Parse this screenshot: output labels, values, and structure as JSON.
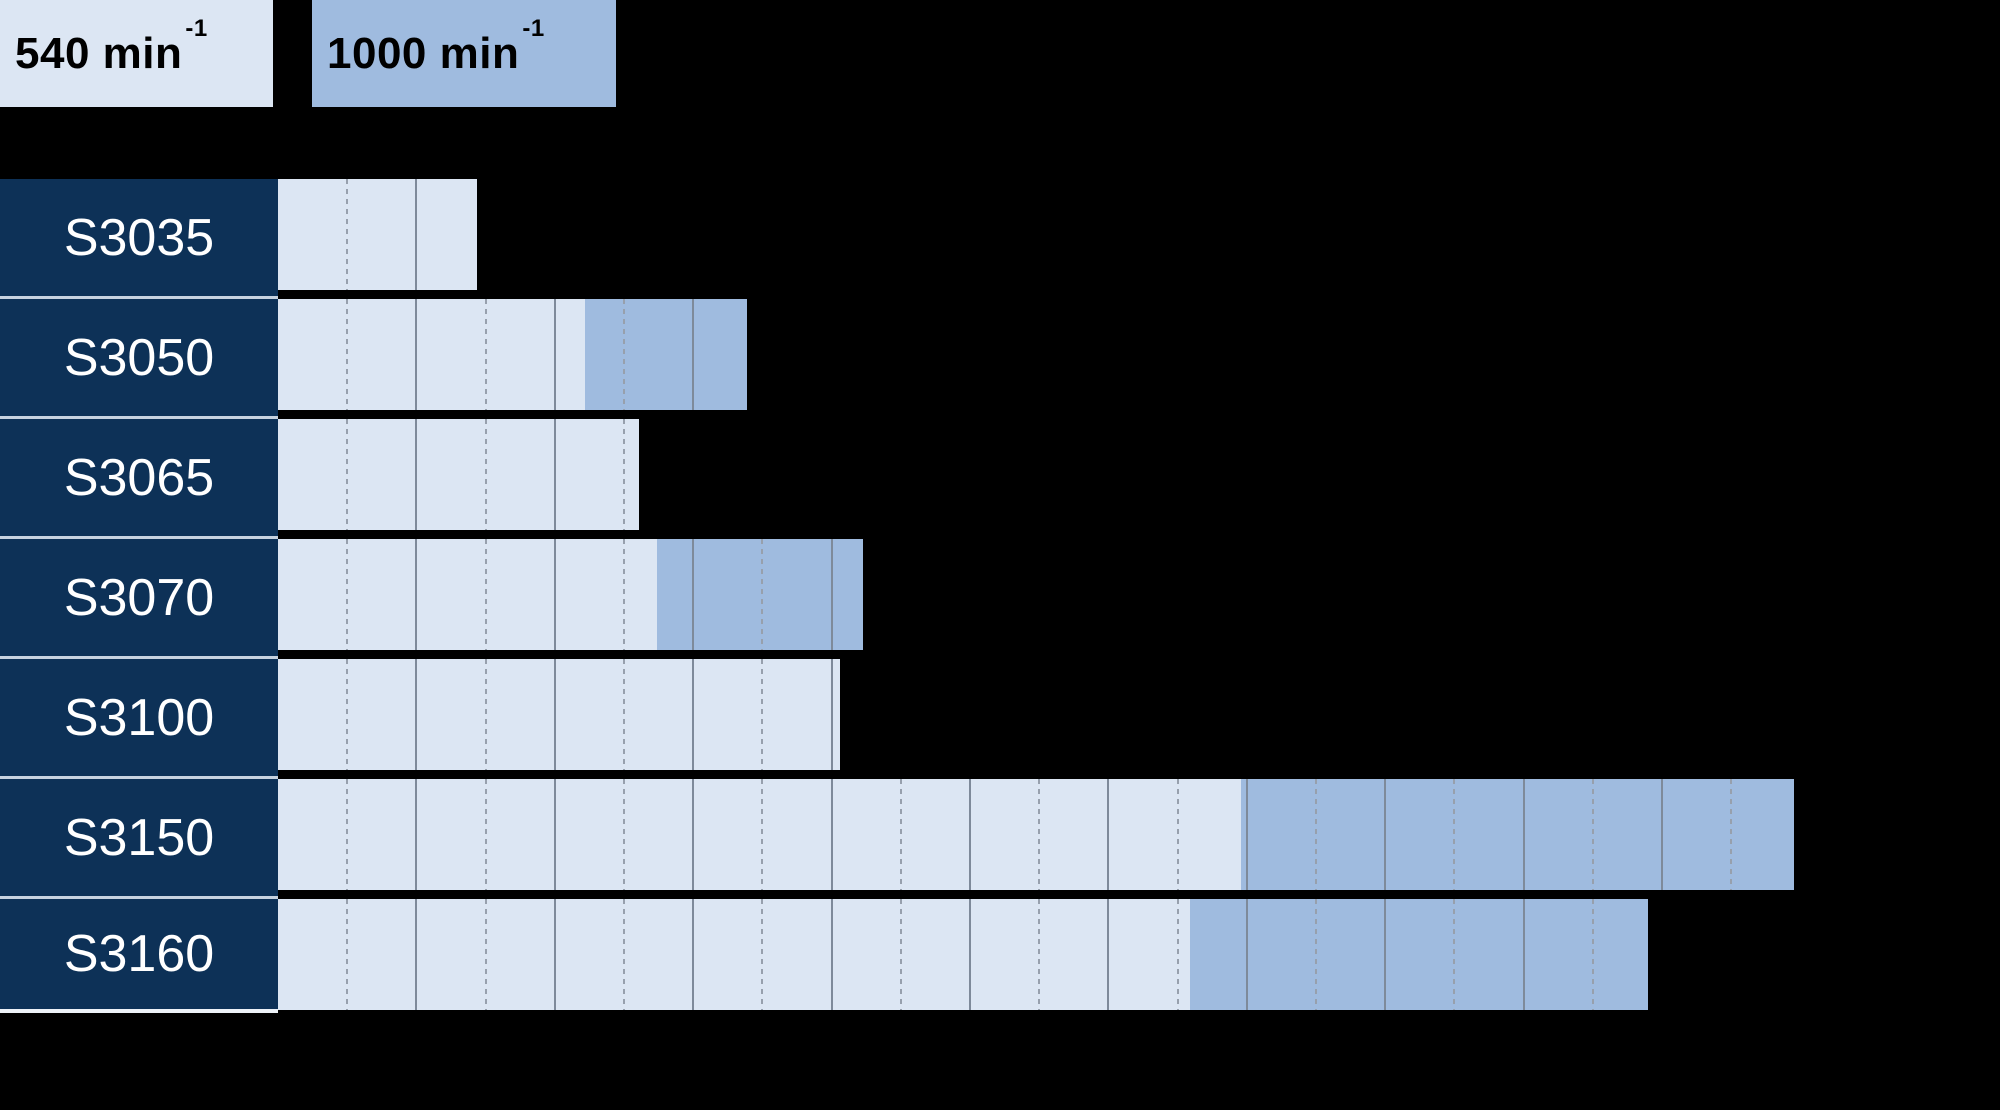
{
  "legend": {
    "items": [
      {
        "text": "540 min",
        "exponent": "-1",
        "series": "540"
      },
      {
        "text": "1000 min",
        "exponent": "-1",
        "series": "1000"
      }
    ]
  },
  "chart_data": {
    "type": "bar",
    "orientation": "horizontal",
    "title": "",
    "categories": [
      "S3035",
      "S3050",
      "S3065",
      "S3070",
      "S3100",
      "S3150",
      "S3160"
    ],
    "series": [
      {
        "name": "540 min-1",
        "color": "#dce6f3",
        "values": [
          2.87,
          4.44,
          5.22,
          5.48,
          8.12,
          13.92,
          13.18
        ]
      },
      {
        "name": "1000 min-1",
        "color": "#9fbbdf",
        "values": [
          null,
          6.78,
          null,
          8.45,
          null,
          21.91,
          19.8
        ]
      }
    ],
    "value_axis": {
      "tick_labels_visible": false,
      "minor_grid_step": 1,
      "minor_grid_style": "dashed",
      "major_grid_step": 2,
      "major_grid_style": "solid",
      "xlim": [
        0,
        22
      ]
    },
    "legend_position": "top-left",
    "bar_style": "1000 min-1 bar starts at the 540 min-1 value and extends to its own total"
  },
  "colors": {
    "background": "#000000",
    "row_label_bg": "#0d3157",
    "row_label_text": "#ffffff",
    "series_540": "#dce6f3",
    "series_1000": "#9fbbdf",
    "grid_solid": "#7e8a9a",
    "grid_dashed": "#97a0ad",
    "row_separator": "#c6d2e0",
    "row_separator_bottom": "#edf2f8",
    "legend_text": "#000000"
  }
}
